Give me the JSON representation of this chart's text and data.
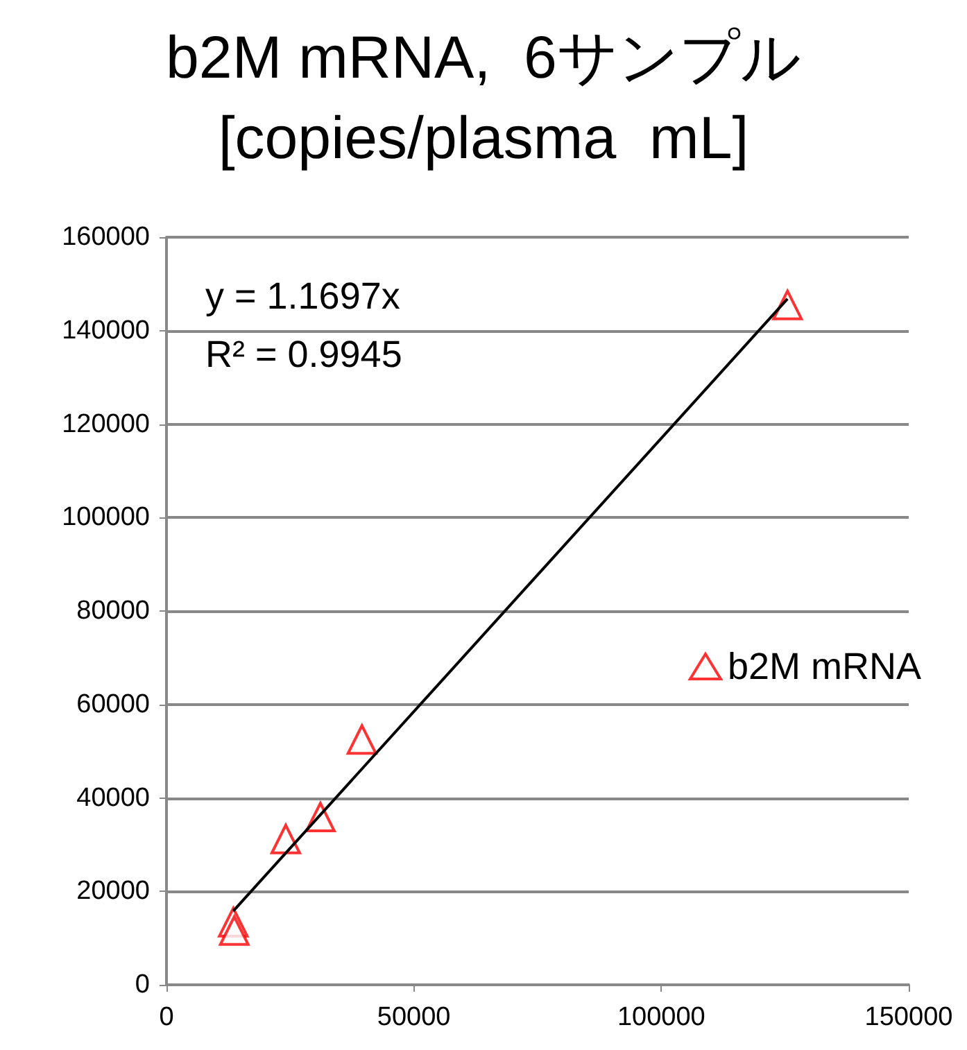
{
  "chart_data": {
    "type": "scatter",
    "title": "b2M mRNA,  6サンプル\n[copies/plasma  mL]",
    "series": [
      {
        "name": "b2M mRNA",
        "color": "#ff0000",
        "marker": "triangle",
        "x": [
          125500,
          39500,
          31100,
          24100,
          13500,
          13700
        ],
        "values": [
          145500,
          52500,
          35900,
          31200,
          13400,
          11600
        ]
      },
      {
        "type": "line",
        "color": "#000000",
        "marker": "none",
        "line_style": "solid",
        "x": [
          13500,
          125500
        ],
        "values": [
          15800,
          146800
        ]
      }
    ],
    "xlim": [
      0,
      150000
    ],
    "xticks": [
      0,
      50000,
      100000,
      150000
    ],
    "ylim": [
      0,
      160000
    ],
    "yticks": [
      0,
      20000,
      40000,
      60000,
      80000,
      100000,
      120000,
      140000,
      160000
    ],
    "grid": "y",
    "legend": "right",
    "annotations": [
      "y = 1.1697x",
      "R² = 0.9945"
    ]
  }
}
